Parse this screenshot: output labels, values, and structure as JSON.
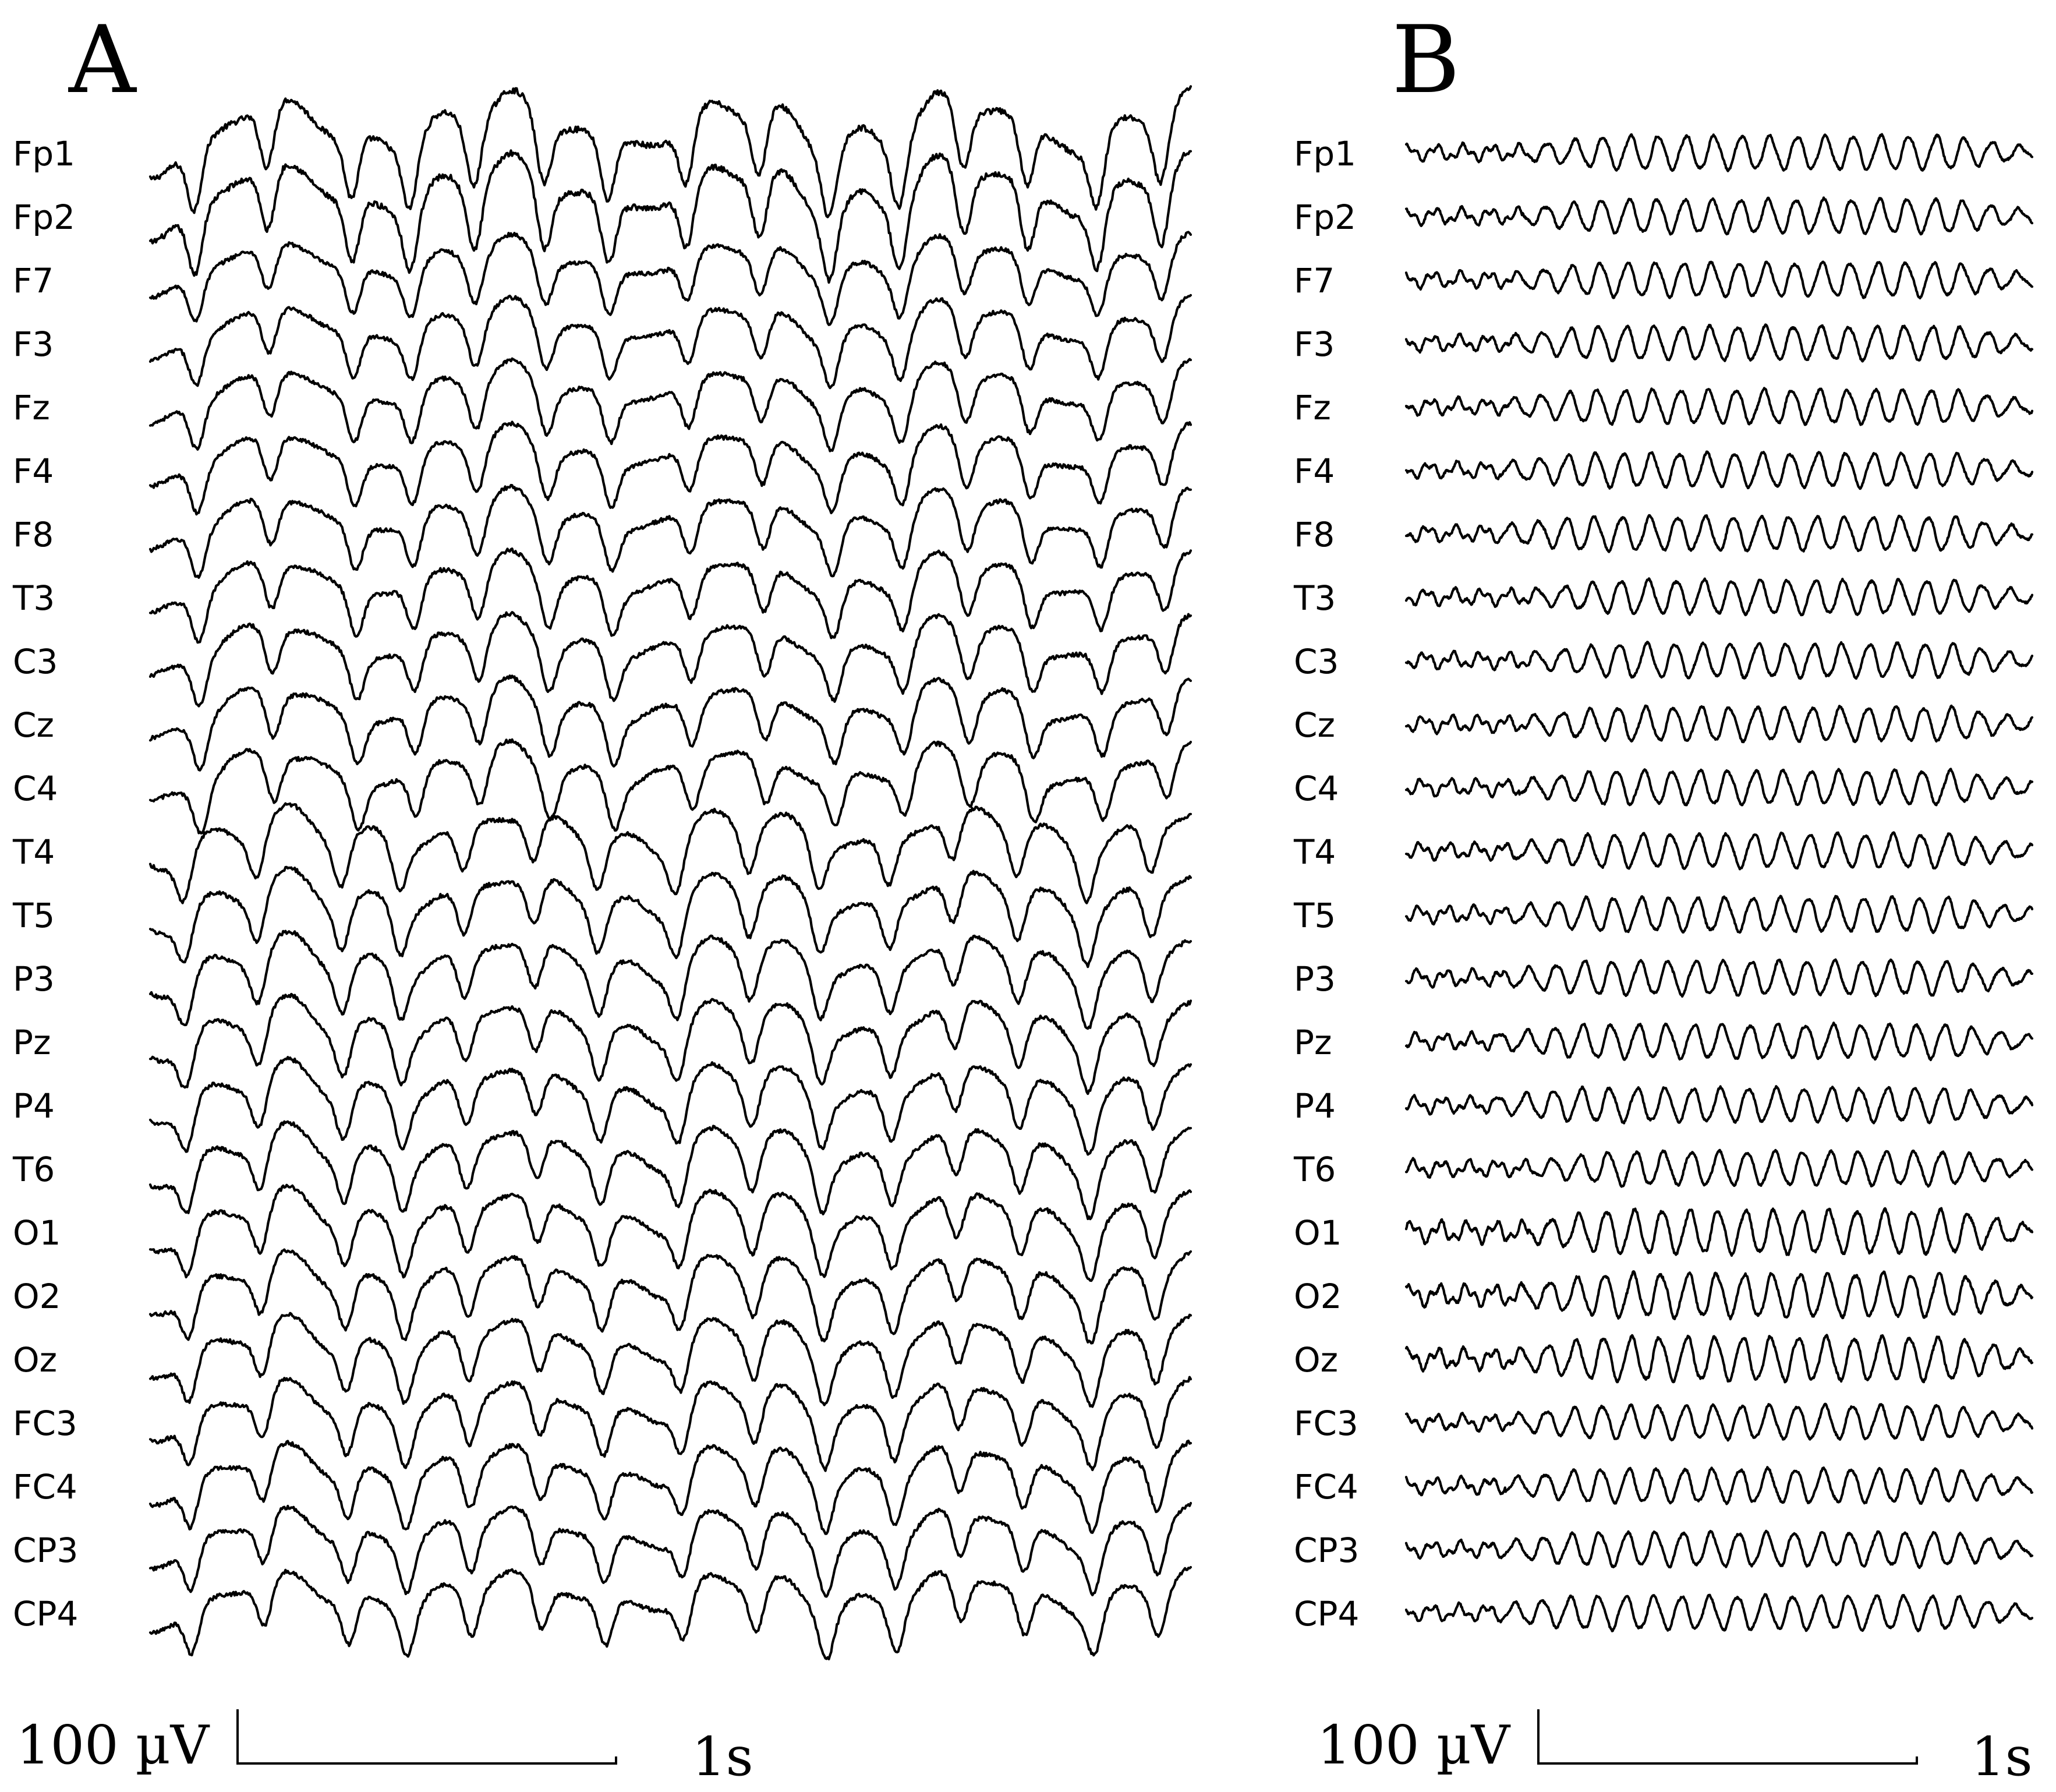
{
  "panels": [
    {
      "letter": "A",
      "style": "slow-high-amplitude",
      "channels": [
        "Fp1",
        "Fp2",
        "F7",
        "F3",
        "Fz",
        "F4",
        "F8",
        "T3",
        "C3",
        "Cz",
        "C4",
        "T4",
        "T5",
        "P3",
        "Pz",
        "P4",
        "T6",
        "O1",
        "O2",
        "Oz",
        "FC3",
        "FC4",
        "CP3",
        "CP4"
      ],
      "scale": {
        "amplitude": "100 µV",
        "time": "1s"
      }
    },
    {
      "letter": "B",
      "style": "fast-rhythmic",
      "channels": [
        "Fp1",
        "Fp2",
        "F7",
        "F3",
        "Fz",
        "F4",
        "F8",
        "T3",
        "C3",
        "Cz",
        "C4",
        "T4",
        "T5",
        "P3",
        "Pz",
        "P4",
        "T6",
        "O1",
        "O2",
        "Oz",
        "FC3",
        "FC4",
        "CP3",
        "CP4"
      ],
      "scale": {
        "amplitude": "100 µV",
        "time": "1s"
      }
    }
  ],
  "colors": {
    "trace": "#000000",
    "background": "#ffffff"
  }
}
